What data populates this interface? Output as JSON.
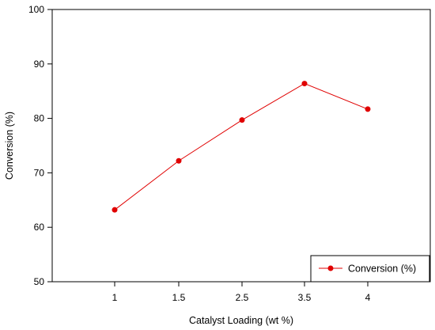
{
  "chart_data": {
    "type": "line",
    "categories": [
      "1",
      "1.5",
      "2.5",
      "3.5",
      "4"
    ],
    "series": [
      {
        "name": "Conversion (%)",
        "values": [
          63.2,
          72.2,
          79.7,
          86.4,
          81.7
        ]
      }
    ],
    "xlabel": "Catalyst Loading (wt %)",
    "ylabel": "Conversion (%)",
    "ylim": [
      50,
      100
    ],
    "yticks": [
      50,
      60,
      70,
      80,
      90,
      100
    ],
    "grid": false,
    "legend_position": "bottom-right",
    "series_color": "#e00000"
  }
}
